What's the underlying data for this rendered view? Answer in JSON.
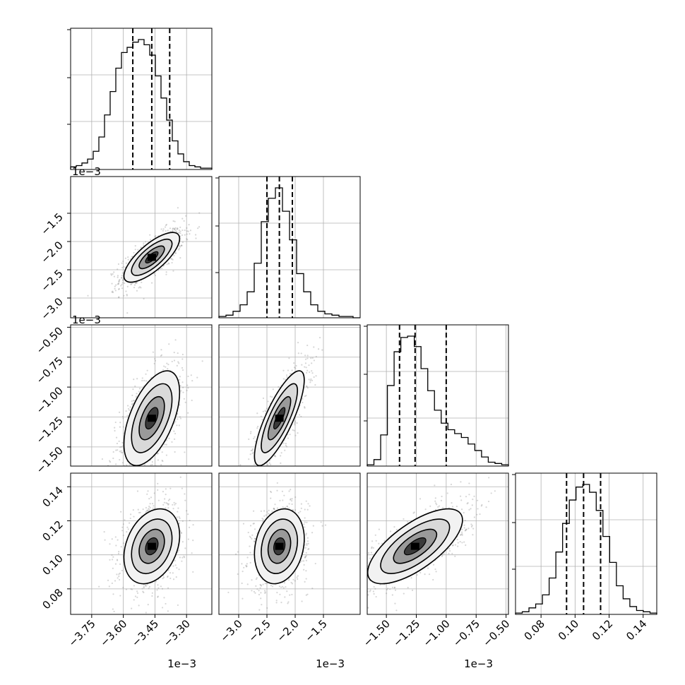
{
  "chart_data": {
    "type": "corner",
    "params": [
      {
        "id": "p1",
        "range": [
          -3.85,
          -3.18
        ],
        "ticks": [
          -3.75,
          -3.6,
          -3.45,
          -3.3
        ],
        "tick_labels": [
          "−3.75",
          "−3.60",
          "−3.45",
          "−3.30"
        ],
        "offset": "1e−3",
        "mean": -3.465,
        "sd": 0.06,
        "quantiles": [
          -3.555,
          -3.465,
          -3.38
        ],
        "hist_counts": [
          0.02,
          0.03,
          0.05,
          0.08,
          0.14,
          0.25,
          0.42,
          0.6,
          0.78,
          0.9,
          0.94,
          0.98,
          1.0,
          0.96,
          0.88,
          0.72,
          0.55,
          0.38,
          0.22,
          0.12,
          0.06,
          0.03,
          0.02,
          0.01,
          0.01
        ]
      },
      {
        "id": "p2",
        "range": [
          -3.35,
          -0.85
        ],
        "ticks": [
          -3.0,
          -2.5,
          -2.0,
          -1.5
        ],
        "tick_labels": [
          "−3.0",
          "−2.5",
          "−2.0",
          "−1.5"
        ],
        "offset": "1e−3",
        "mean": -2.28,
        "sd": 0.2,
        "quantiles": [
          -2.5,
          -2.28,
          -2.05
        ],
        "hist_counts": [
          0.01,
          0.02,
          0.05,
          0.1,
          0.2,
          0.42,
          0.74,
          0.92,
          1.0,
          0.82,
          0.6,
          0.34,
          0.2,
          0.1,
          0.05,
          0.03,
          0.02,
          0.01,
          0.01,
          0.0
        ]
      },
      {
        "id": "p3",
        "range": [
          -1.66,
          -0.48
        ],
        "ticks": [
          -1.5,
          -1.25,
          -1.0,
          -0.75,
          -0.5
        ],
        "tick_labels": [
          "−1.50",
          "−1.25",
          "−1.00",
          "−0.75",
          "−0.50"
        ],
        "y_tick_labels": [
          "−1.50",
          "−1.25",
          "−1.00",
          "−0.75",
          "−0.50"
        ],
        "offset": "1e−3",
        "mean": -1.26,
        "sd": 0.18,
        "quantiles": [
          -1.39,
          -1.26,
          -1.0
        ],
        "hist_counts": [
          0.01,
          0.05,
          0.24,
          0.62,
          0.88,
          0.99,
          1.0,
          0.92,
          0.75,
          0.58,
          0.43,
          0.33,
          0.28,
          0.25,
          0.22,
          0.17,
          0.12,
          0.07,
          0.03,
          0.02,
          0.01
        ]
      },
      {
        "id": "p4",
        "range": [
          0.065,
          0.148
        ],
        "ticks": [
          0.08,
          0.1,
          0.12,
          0.14
        ],
        "tick_labels": [
          "0.08",
          "0.10",
          "0.12",
          "0.14"
        ],
        "offset": "",
        "mean": 0.105,
        "sd": 0.01,
        "quantiles": [
          0.095,
          0.105,
          0.115
        ],
        "hist_counts": [
          0.01,
          0.02,
          0.05,
          0.08,
          0.15,
          0.28,
          0.48,
          0.7,
          0.88,
          0.98,
          1.0,
          0.94,
          0.8,
          0.6,
          0.4,
          0.22,
          0.12,
          0.06,
          0.03,
          0.02,
          0.01
        ]
      }
    ],
    "pairs": [
      {
        "x": "p1",
        "y": "p2",
        "rho": 0.75
      },
      {
        "x": "p1",
        "y": "p3",
        "rho": 0.55
      },
      {
        "x": "p2",
        "y": "p3",
        "rho": 0.8
      },
      {
        "x": "p1",
        "y": "p4",
        "rho": 0.3
      },
      {
        "x": "p2",
        "y": "p4",
        "rho": 0.2
      },
      {
        "x": "p3",
        "y": "p4",
        "rho": 0.7
      }
    ],
    "grid": true
  }
}
